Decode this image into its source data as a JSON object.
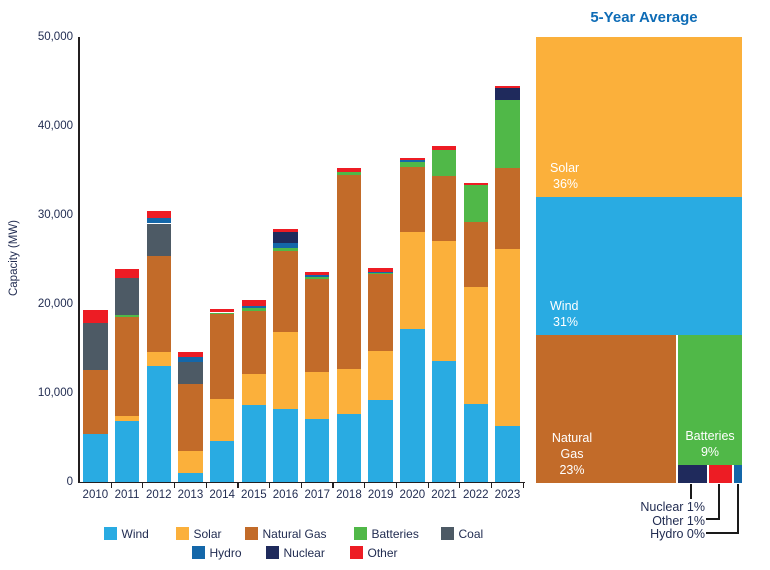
{
  "colors": {
    "Wind": "#29ABE2",
    "Solar": "#FBB03B",
    "Natural Gas": "#C26B29",
    "Batteries": "#50B848",
    "Coal": "#4D5A65",
    "Hydro": "#1467A9",
    "Nuclear": "#1F2A5C",
    "Other": "#ED1C24"
  },
  "text_color": "#222D52",
  "axis_color": "#231F20",
  "right_panel": {
    "title": "5-Year Average",
    "title_color": "#0E6CB6",
    "callouts": [
      "Nuclear 1%",
      "Other 1%",
      "Hydro 0%"
    ]
  },
  "chart_data": [
    {
      "type": "bar",
      "stacked": true,
      "title": "",
      "xlabel": "",
      "ylabel": "Capacity (MW)",
      "ylim": [
        0,
        50000
      ],
      "grid": false,
      "legend_position": "bottom",
      "yticks": [
        0,
        10000,
        20000,
        30000,
        40000,
        50000
      ],
      "ytick_labels": [
        "0",
        "10,000",
        "20,000",
        "30,000",
        "40,000",
        "50,000"
      ],
      "categories": [
        "2010",
        "2011",
        "2012",
        "2013",
        "2014",
        "2015",
        "2016",
        "2017",
        "2018",
        "2019",
        "2020",
        "2021",
        "2022",
        "2023"
      ],
      "series": [
        {
          "name": "Wind",
          "values": [
            5400,
            6900,
            13100,
            1100,
            4700,
            8700,
            8300,
            7100,
            7700,
            9300,
            17300,
            13600,
            8800,
            6400
          ]
        },
        {
          "name": "Solar",
          "values": [
            0,
            600,
            1600,
            2400,
            4700,
            3500,
            8600,
            5300,
            5000,
            5500,
            10800,
            13500,
            13200,
            19800
          ]
        },
        {
          "name": "Natural Gas",
          "values": [
            7200,
            11100,
            10700,
            7600,
            9500,
            7100,
            9100,
            10500,
            21900,
            8600,
            7300,
            7300,
            7300,
            9100
          ]
        },
        {
          "name": "Batteries",
          "values": [
            0,
            200,
            0,
            0,
            200,
            300,
            400,
            200,
            300,
            200,
            600,
            3000,
            4100,
            7700
          ]
        },
        {
          "name": "Coal",
          "values": [
            5300,
            4200,
            3700,
            2400,
            0,
            0,
            0,
            0,
            0,
            0,
            0,
            0,
            0,
            0
          ]
        },
        {
          "name": "Hydro",
          "values": [
            0,
            0,
            600,
            600,
            0,
            200,
            500,
            200,
            0,
            100,
            200,
            0,
            0,
            0
          ]
        },
        {
          "name": "Nuclear",
          "values": [
            0,
            0,
            0,
            0,
            0,
            0,
            1200,
            0,
            0,
            0,
            0,
            0,
            0,
            1300
          ]
        },
        {
          "name": "Other",
          "values": [
            1500,
            1000,
            800,
            600,
            400,
            700,
            400,
            400,
            400,
            400,
            300,
            400,
            300,
            200
          ]
        }
      ],
      "legend_rows": [
        [
          "Wind",
          "Solar",
          "Natural Gas",
          "Batteries",
          "Coal"
        ],
        [
          "Hydro",
          "Nuclear",
          "Other"
        ]
      ]
    },
    {
      "type": "treemap",
      "title": "5-Year Average",
      "items": [
        {
          "name": "Solar",
          "share_pct": 36,
          "pct_label": "36%"
        },
        {
          "name": "Wind",
          "share_pct": 31,
          "pct_label": "31%"
        },
        {
          "name": "Natural Gas",
          "share_pct": 23,
          "pct_label": "23%"
        },
        {
          "name": "Batteries",
          "share_pct": 9,
          "pct_label": "9%"
        },
        {
          "name": "Nuclear",
          "share_pct": 1,
          "pct_label": "1%"
        },
        {
          "name": "Other",
          "share_pct": 1,
          "pct_label": "1%"
        },
        {
          "name": "Hydro",
          "share_pct": 0,
          "pct_label": "0%"
        }
      ]
    }
  ]
}
